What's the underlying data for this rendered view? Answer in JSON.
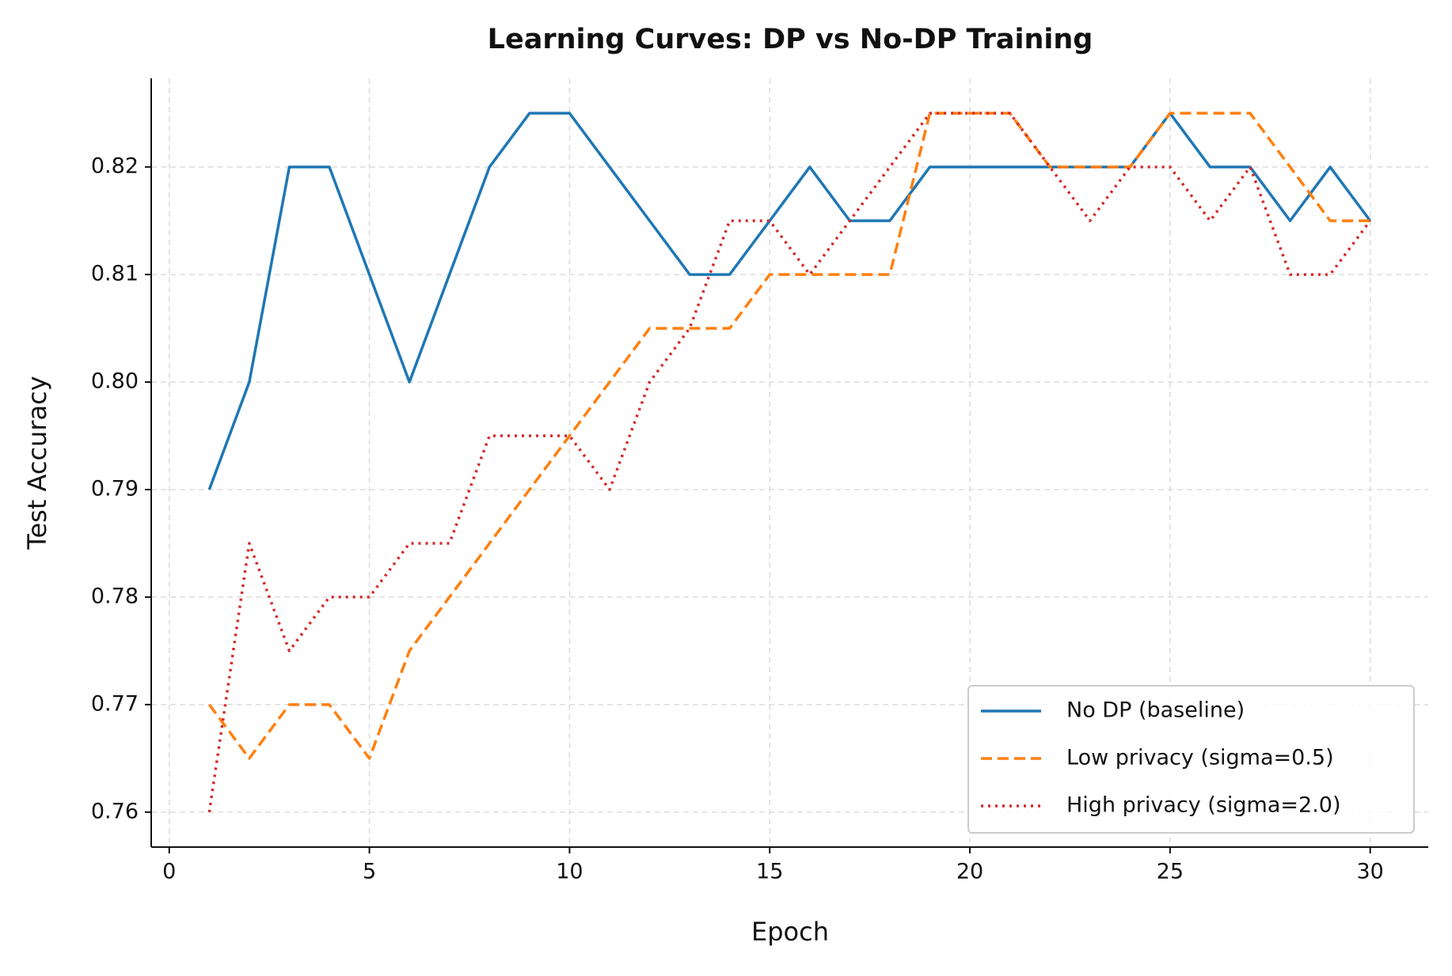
{
  "chart_data": {
    "type": "line",
    "title": "Learning Curves: DP vs No-DP Training",
    "x_label": "Epoch",
    "y_label": "Test Accuracy",
    "x": [
      1,
      2,
      3,
      4,
      5,
      6,
      7,
      8,
      9,
      10,
      11,
      12,
      13,
      14,
      15,
      16,
      17,
      18,
      19,
      20,
      21,
      22,
      23,
      24,
      25,
      26,
      27,
      28,
      29,
      30
    ],
    "series": [
      {
        "name": "No DP (baseline)",
        "color": "#1f77b4",
        "dash": "solid",
        "values": [
          0.79,
          0.8,
          0.82,
          0.82,
          0.81,
          0.8,
          0.81,
          0.82,
          0.825,
          0.825,
          0.82,
          0.815,
          0.81,
          0.81,
          0.815,
          0.82,
          0.815,
          0.815,
          0.82,
          0.82,
          0.82,
          0.82,
          0.82,
          0.82,
          0.825,
          0.82,
          0.82,
          0.815,
          0.82,
          0.815
        ]
      },
      {
        "name": "Low privacy (sigma=0.5)",
        "color": "#ff7f0e",
        "dash": "dashed",
        "values": [
          0.77,
          0.765,
          0.77,
          0.77,
          0.765,
          0.775,
          0.78,
          0.785,
          0.79,
          0.795,
          0.8,
          0.805,
          0.805,
          0.805,
          0.81,
          0.81,
          0.81,
          0.81,
          0.825,
          0.825,
          0.825,
          0.82,
          0.82,
          0.82,
          0.825,
          0.825,
          0.825,
          0.82,
          0.815,
          0.815
        ]
      },
      {
        "name": "High privacy (sigma=2.0)",
        "color": "#d62728",
        "dash": "dotted",
        "values": [
          0.76,
          0.785,
          0.775,
          0.78,
          0.78,
          0.785,
          0.785,
          0.795,
          0.795,
          0.795,
          0.79,
          0.8,
          0.805,
          0.815,
          0.815,
          0.81,
          0.815,
          0.82,
          0.825,
          0.825,
          0.825,
          0.82,
          0.815,
          0.82,
          0.82,
          0.815,
          0.82,
          0.81,
          0.81,
          0.815
        ]
      }
    ],
    "xlim": [
      -0.45,
      31.45
    ],
    "ylim": [
      0.75675,
      0.82825
    ],
    "xticks": [
      0,
      5,
      10,
      15,
      20,
      25,
      30
    ],
    "yticks": [
      0.76,
      0.77,
      0.78,
      0.79,
      {
        "value": 0.8,
        "label": "0.80"
      },
      0.81,
      0.82
    ],
    "grid": true,
    "legend": "lower right"
  }
}
